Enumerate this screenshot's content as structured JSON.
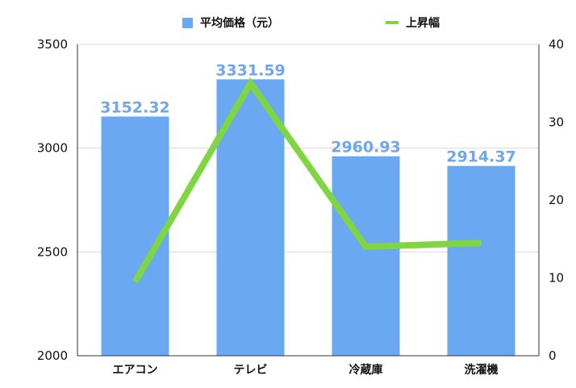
{
  "chart_data": {
    "type": "bar",
    "categories": [
      "エアコン",
      "テレビ",
      "冷蔵庫",
      "洗濯機"
    ],
    "series": [
      {
        "name": "平均価格（元）",
        "type": "bar",
        "axis": "left",
        "values": [
          3152.32,
          3331.59,
          2960.93,
          2914.37
        ],
        "value_labels": [
          "3152.32",
          "3331.59",
          "2960.93",
          "2914.37"
        ],
        "color": "#6aa8f2"
      },
      {
        "name": "上昇幅",
        "type": "line",
        "axis": "right",
        "values": [
          9.5,
          35,
          14,
          14.5
        ],
        "color": "#80d640"
      }
    ],
    "y_left": {
      "min": 2000,
      "max": 3500,
      "ticks": [
        "2000",
        "2500",
        "3000",
        "3500"
      ]
    },
    "y_right": {
      "min": 0,
      "max": 40,
      "ticks": [
        "0",
        "10",
        "20",
        "30",
        "40"
      ]
    },
    "grid": true,
    "legend": "top-center"
  }
}
